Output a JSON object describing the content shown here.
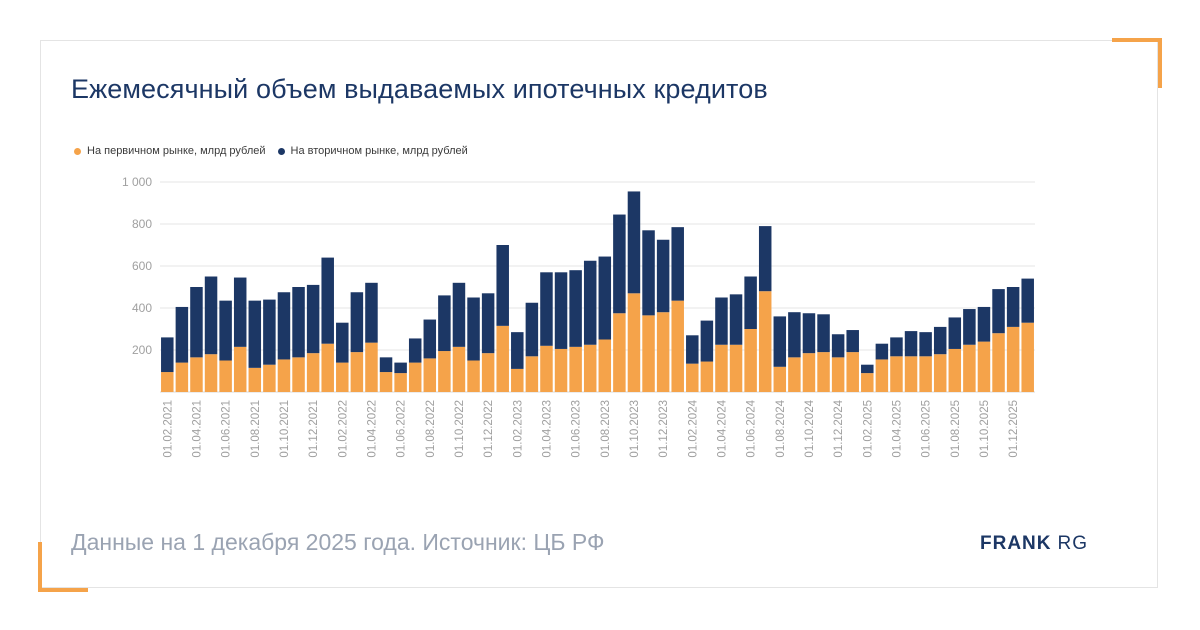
{
  "title": "Ежемесячный объем выдаваемых ипотечных кредитов",
  "footer": "Данные на 1 декабря 2025 года. Источник: ЦБ РФ",
  "brand": {
    "strong": "FRANK",
    "light": "RG"
  },
  "colors": {
    "primary": "#f5a34a",
    "secondary": "#1c3765",
    "accent": "#f5a34a",
    "brand": "#1c3765"
  },
  "chart_data": {
    "type": "bar",
    "stacked": true,
    "grid": true,
    "legend_position": "top-left",
    "ylim": [
      0,
      1000
    ],
    "yticks": [
      {
        "value": 200,
        "label": "200"
      },
      {
        "value": 400,
        "label": "400"
      },
      {
        "value": 600,
        "label": "600"
      },
      {
        "value": 800,
        "label": "800"
      },
      {
        "value": 1000,
        "label": "1 000"
      }
    ],
    "xtick_labels": [
      "01.02.2021",
      "01.04.2021",
      "01.06.2021",
      "01.08.2021",
      "01.10.2021",
      "01.12.2021",
      "01.02.2022",
      "01.04.2022",
      "01.06.2022",
      "01.08.2022",
      "01.10.2022",
      "01.12.2022",
      "01.02.2023",
      "01.04.2023",
      "01.06.2023",
      "01.08.2023",
      "01.10.2023",
      "01.12.2023",
      "01.02.2024",
      "01.04.2024",
      "01.06.2024",
      "01.08.2024",
      "01.10.2024",
      "01.12.2024",
      "01.02.2025",
      "01.04.2025",
      "01.06.2025",
      "01.08.2025",
      "01.10.2025",
      "01.12.2025"
    ],
    "categories": [
      "02.2021",
      "03.2021",
      "04.2021",
      "05.2021",
      "06.2021",
      "07.2021",
      "08.2021",
      "09.2021",
      "10.2021",
      "11.2021",
      "12.2021",
      "01.2022",
      "02.2022",
      "03.2022",
      "04.2022",
      "05.2022",
      "06.2022",
      "07.2022",
      "08.2022",
      "09.2022",
      "10.2022",
      "11.2022",
      "12.2022",
      "01.2023",
      "02.2023",
      "03.2023",
      "04.2023",
      "05.2023",
      "06.2023",
      "07.2023",
      "08.2023",
      "09.2023",
      "10.2023",
      "11.2023",
      "12.2023",
      "01.2024",
      "02.2024",
      "03.2024",
      "04.2024",
      "05.2024",
      "06.2024",
      "07.2024",
      "08.2024",
      "09.2024",
      "10.2024",
      "11.2024",
      "12.2024",
      "01.2025",
      "02.2025",
      "03.2025",
      "04.2025",
      "05.2025",
      "06.2025",
      "07.2025",
      "08.2025",
      "09.2025",
      "10.2025",
      "11.2025",
      "12.2025",
      "01.2026"
    ],
    "series": [
      {
        "name": "На первичном рынке, млрд рублей",
        "values": [
          95,
          140,
          165,
          180,
          150,
          215,
          115,
          130,
          155,
          165,
          185,
          230,
          140,
          190,
          235,
          95,
          90,
          140,
          160,
          195,
          215,
          150,
          185,
          315,
          110,
          170,
          220,
          205,
          215,
          225,
          250,
          375,
          470,
          365,
          380,
          435,
          135,
          145,
          225,
          225,
          300,
          480,
          120,
          165,
          185,
          190,
          165,
          190,
          90,
          155,
          170,
          170,
          170,
          180,
          205,
          225,
          240,
          280,
          310,
          330
        ]
      },
      {
        "name": "На вторичном рынке, млрд рублей",
        "values": [
          165,
          265,
          335,
          370,
          285,
          330,
          320,
          310,
          320,
          335,
          325,
          410,
          190,
          285,
          285,
          70,
          50,
          115,
          185,
          265,
          305,
          300,
          285,
          385,
          175,
          255,
          350,
          365,
          365,
          400,
          395,
          470,
          485,
          405,
          345,
          350,
          135,
          195,
          225,
          240,
          250,
          310,
          240,
          215,
          190,
          180,
          110,
          105,
          40,
          75,
          90,
          120,
          115,
          130,
          150,
          170,
          165,
          210,
          190,
          210
        ]
      }
    ]
  }
}
